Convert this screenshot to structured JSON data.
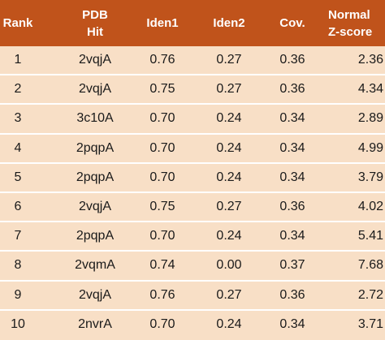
{
  "table": {
    "headers": {
      "rank": "Rank",
      "hit_line1": "PDB",
      "hit_line2": "Hit",
      "iden1": "Iden1",
      "iden2": "Iden2",
      "cov": "Cov.",
      "z_line1": "Normal",
      "z_line2": "Z-score"
    },
    "rows": [
      {
        "rank": "1",
        "hit": "2vqjA",
        "iden1": "0.76",
        "iden2": "0.27",
        "cov": "0.36",
        "z": "2.36"
      },
      {
        "rank": "2",
        "hit": "2vqjA",
        "iden1": "0.75",
        "iden2": "0.27",
        "cov": "0.36",
        "z": "4.34"
      },
      {
        "rank": "3",
        "hit": "3c10A",
        "iden1": "0.70",
        "iden2": "0.24",
        "cov": "0.34",
        "z": "2.89"
      },
      {
        "rank": "4",
        "hit": "2pqpA",
        "iden1": "0.70",
        "iden2": "0.24",
        "cov": "0.34",
        "z": "4.99"
      },
      {
        "rank": "5",
        "hit": "2pqpA",
        "iden1": "0.70",
        "iden2": "0.24",
        "cov": "0.34",
        "z": "3.79"
      },
      {
        "rank": "6",
        "hit": "2vqjA",
        "iden1": "0.75",
        "iden2": "0.27",
        "cov": "0.36",
        "z": "4.02"
      },
      {
        "rank": "7",
        "hit": "2pqpA",
        "iden1": "0.70",
        "iden2": "0.24",
        "cov": "0.34",
        "z": "5.41"
      },
      {
        "rank": "8",
        "hit": "2vqmA",
        "iden1": "0.74",
        "iden2": "0.00",
        "cov": "0.37",
        "z": "7.68"
      },
      {
        "rank": "9",
        "hit": "2vqjA",
        "iden1": "0.76",
        "iden2": "0.27",
        "cov": "0.36",
        "z": "2.72"
      },
      {
        "rank": "10",
        "hit": "2nvrA",
        "iden1": "0.70",
        "iden2": "0.24",
        "cov": "0.34",
        "z": "3.71"
      }
    ]
  },
  "colors": {
    "header_bg": "#c0531b",
    "row_bg": "#f8dfc6",
    "separator": "#ffffff"
  }
}
